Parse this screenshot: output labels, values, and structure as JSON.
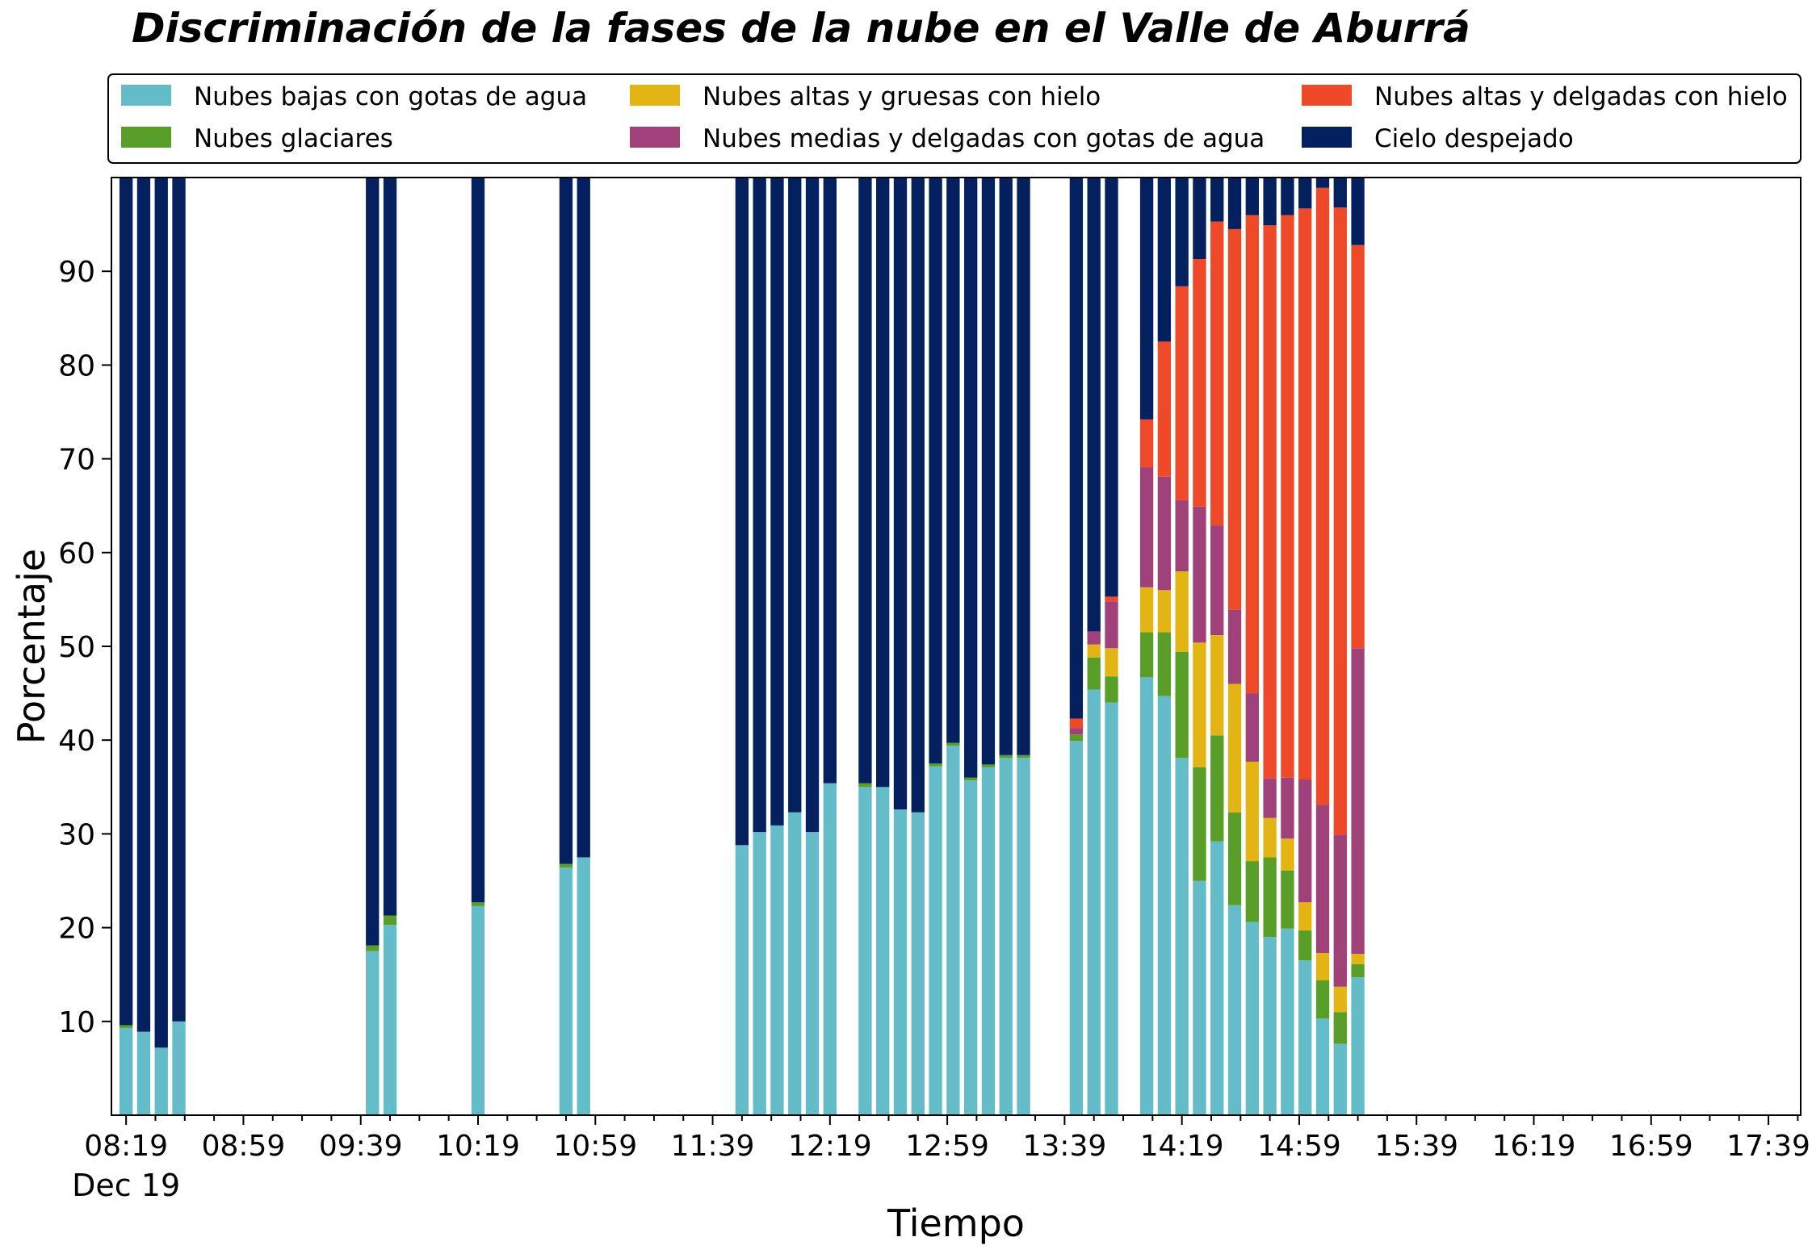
{
  "chart_data": {
    "type": "bar",
    "stacked": true,
    "title": "Discriminación de la fases de la nube en el Valle de Aburrá",
    "xlabel": "Tiempo",
    "ylabel": "Porcentaje",
    "ylim": [
      0,
      100
    ],
    "yticks": [
      10,
      20,
      30,
      40,
      50,
      60,
      70,
      80,
      90
    ],
    "x_tick_labels": [
      "08:19",
      "08:59",
      "09:39",
      "10:19",
      "10:59",
      "11:39",
      "12:19",
      "12:59",
      "13:39",
      "14:19",
      "14:59",
      "15:39",
      "16:19",
      "16:59",
      "17:39"
    ],
    "x_date_label": "Dec 19",
    "x_range_minutes": [
      "08:14",
      "17:50"
    ],
    "bar_width_minutes": 4.5,
    "grid": false,
    "legend_position": "top",
    "legend_columns": 3,
    "series": [
      {
        "name": "Nubes bajas con gotas de agua",
        "color": "#64bcc8"
      },
      {
        "name": "Nubes glaciares",
        "color": "#5a9e2a"
      },
      {
        "name": "Nubes altas y gruesas con hielo",
        "color": "#e2b514"
      },
      {
        "name": "Nubes medias y delgadas con gotas de agua",
        "color": "#a0417a"
      },
      {
        "name": "Nubes altas y delgadas con hielo",
        "color": "#ee4a2a"
      },
      {
        "name": "Cielo despejado",
        "color": "#04205e"
      }
    ],
    "data": [
      {
        "time": "08:19",
        "values": [
          9.3,
          0.3,
          0,
          0,
          0,
          90.4
        ]
      },
      {
        "time": "08:25",
        "values": [
          8.9,
          0,
          0,
          0,
          0,
          91.1
        ]
      },
      {
        "time": "08:31",
        "values": [
          7.2,
          0,
          0,
          0,
          0,
          92.8
        ]
      },
      {
        "time": "08:37",
        "values": [
          10.0,
          0,
          0,
          0,
          0,
          90.0
        ]
      },
      {
        "time": "09:43",
        "values": [
          17.5,
          0.6,
          0,
          0,
          0,
          81.9
        ]
      },
      {
        "time": "09:49",
        "values": [
          20.3,
          1.0,
          0,
          0,
          0,
          78.7
        ]
      },
      {
        "time": "10:19",
        "values": [
          22.3,
          0.4,
          0,
          0,
          0,
          77.3
        ]
      },
      {
        "time": "10:49",
        "values": [
          26.4,
          0.4,
          0,
          0,
          0,
          73.2
        ]
      },
      {
        "time": "10:55",
        "values": [
          27.5,
          0,
          0,
          0,
          0,
          72.5
        ]
      },
      {
        "time": "11:49",
        "values": [
          28.8,
          0,
          0,
          0,
          0,
          71.2
        ]
      },
      {
        "time": "11:55",
        "values": [
          30.2,
          0,
          0,
          0,
          0,
          69.8
        ]
      },
      {
        "time": "12:01",
        "values": [
          30.9,
          0,
          0,
          0,
          0,
          69.1
        ]
      },
      {
        "time": "12:07",
        "values": [
          32.3,
          0,
          0,
          0,
          0,
          67.7
        ]
      },
      {
        "time": "12:13",
        "values": [
          30.2,
          0,
          0,
          0,
          0,
          69.8
        ]
      },
      {
        "time": "12:19",
        "values": [
          35.4,
          0,
          0,
          0,
          0,
          64.6
        ]
      },
      {
        "time": "12:31",
        "values": [
          35.0,
          0.4,
          0,
          0,
          0,
          64.6
        ]
      },
      {
        "time": "12:37",
        "values": [
          35.0,
          0,
          0,
          0,
          0,
          65.0
        ]
      },
      {
        "time": "12:43",
        "values": [
          32.6,
          0,
          0,
          0,
          0,
          67.4
        ]
      },
      {
        "time": "12:49",
        "values": [
          32.3,
          0,
          0,
          0,
          0,
          67.7
        ]
      },
      {
        "time": "12:55",
        "values": [
          37.2,
          0.3,
          0,
          0,
          0,
          62.5
        ]
      },
      {
        "time": "13:01",
        "values": [
          39.4,
          0.3,
          0,
          0,
          0,
          60.3
        ]
      },
      {
        "time": "13:07",
        "values": [
          35.7,
          0.3,
          0,
          0,
          0,
          64.0
        ]
      },
      {
        "time": "13:13",
        "values": [
          37.1,
          0.3,
          0,
          0,
          0,
          62.6
        ]
      },
      {
        "time": "13:19",
        "values": [
          38.1,
          0.3,
          0,
          0,
          0,
          61.6
        ]
      },
      {
        "time": "13:25",
        "values": [
          38.1,
          0.3,
          0,
          0,
          0,
          61.6
        ]
      },
      {
        "time": "13:43",
        "values": [
          39.9,
          0.7,
          0,
          0.7,
          1.0,
          57.7
        ]
      },
      {
        "time": "13:49",
        "values": [
          45.4,
          3.4,
          1.4,
          1.4,
          0,
          48.4
        ]
      },
      {
        "time": "13:55",
        "values": [
          44.0,
          2.8,
          3.0,
          5.0,
          0.5,
          44.7
        ]
      },
      {
        "time": "14:07",
        "values": [
          46.7,
          4.8,
          4.8,
          12.8,
          5.1,
          25.8
        ]
      },
      {
        "time": "14:13",
        "values": [
          44.7,
          6.8,
          4.5,
          12.1,
          14.4,
          17.5
        ]
      },
      {
        "time": "14:19",
        "values": [
          38.1,
          11.3,
          8.6,
          7.6,
          22.8,
          11.6
        ]
      },
      {
        "time": "14:25",
        "values": [
          25.0,
          12.1,
          13.3,
          14.5,
          26.4,
          8.7
        ]
      },
      {
        "time": "14:31",
        "values": [
          29.2,
          11.3,
          10.7,
          11.7,
          32.4,
          4.7
        ]
      },
      {
        "time": "14:37",
        "values": [
          22.4,
          9.9,
          13.7,
          7.9,
          40.6,
          5.5
        ]
      },
      {
        "time": "14:43",
        "values": [
          20.6,
          6.5,
          10.6,
          7.3,
          51.0,
          4.0
        ]
      },
      {
        "time": "14:49",
        "values": [
          19.0,
          8.5,
          4.2,
          4.2,
          59.0,
          5.1
        ]
      },
      {
        "time": "14:55",
        "values": [
          19.9,
          6.2,
          3.4,
          6.5,
          60.0,
          4.0
        ]
      },
      {
        "time": "15:01",
        "values": [
          16.5,
          3.2,
          3.0,
          13.1,
          60.9,
          3.3
        ]
      },
      {
        "time": "15:07",
        "values": [
          10.3,
          4.1,
          2.9,
          15.8,
          65.8,
          1.1
        ]
      },
      {
        "time": "15:13",
        "values": [
          7.6,
          3.4,
          2.7,
          16.2,
          66.9,
          3.2
        ]
      },
      {
        "time": "15:19",
        "values": [
          14.7,
          1.4,
          1.1,
          32.6,
          43.0,
          7.2
        ]
      }
    ]
  }
}
